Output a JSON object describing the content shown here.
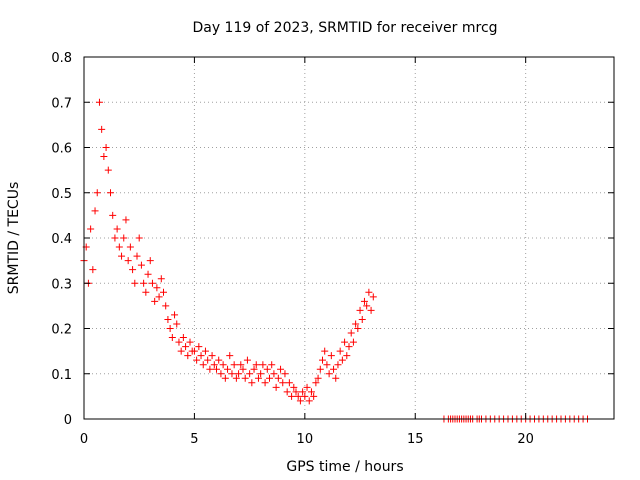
{
  "chart_data": {
    "type": "scatter",
    "title": "Day 119 of 2023, SRMTID for receiver mrcg",
    "xlabel": "GPS time / hours",
    "ylabel": "SRMTID / TECUs",
    "xlim": [
      0,
      24
    ],
    "ylim": [
      0,
      0.8
    ],
    "xticks": [
      0,
      5,
      10,
      15,
      20
    ],
    "xtick_labels": [
      "0",
      "5",
      "10",
      "15",
      "20"
    ],
    "yticks": [
      0,
      0.1,
      0.2,
      0.3,
      0.4,
      0.5,
      0.6,
      0.7,
      0.8
    ],
    "ytick_labels": [
      "0",
      "0.1",
      "0.2",
      "0.3",
      "0.4",
      "0.5",
      "0.6",
      "0.7",
      "0.8"
    ],
    "grid": true,
    "marker": "plus",
    "colors": {
      "series": "#ff0000",
      "grid": "#a0a0a0",
      "axis": "#000000"
    },
    "series": [
      {
        "name": "SRMTID",
        "x": [
          0.0,
          0.1,
          0.2,
          0.3,
          0.4,
          0.5,
          0.6,
          0.7,
          0.8,
          0.9,
          1.0,
          1.1,
          1.2,
          1.3,
          1.4,
          1.5,
          1.6,
          1.7,
          1.8,
          1.9,
          2.0,
          2.1,
          2.2,
          2.3,
          2.4,
          2.5,
          2.6,
          2.7,
          2.8,
          2.9,
          3.0,
          3.1,
          3.2,
          3.3,
          3.4,
          3.5,
          3.6,
          3.7,
          3.8,
          3.9,
          4.0,
          4.1,
          4.2,
          4.3,
          4.4,
          4.5,
          4.6,
          4.7,
          4.8,
          4.9,
          5.0,
          5.1,
          5.2,
          5.3,
          5.4,
          5.5,
          5.6,
          5.7,
          5.8,
          5.9,
          6.0,
          6.1,
          6.2,
          6.3,
          6.4,
          6.5,
          6.6,
          6.7,
          6.8,
          6.9,
          7.0,
          7.1,
          7.2,
          7.3,
          7.4,
          7.5,
          7.6,
          7.7,
          7.8,
          7.9,
          8.0,
          8.1,
          8.2,
          8.3,
          8.4,
          8.5,
          8.6,
          8.7,
          8.8,
          8.9,
          9.0,
          9.1,
          9.2,
          9.3,
          9.4,
          9.5,
          9.6,
          9.7,
          9.8,
          9.9,
          10.0,
          10.1,
          10.2,
          10.3,
          10.4,
          10.5,
          10.6,
          10.7,
          10.8,
          10.9,
          11.0,
          11.1,
          11.2,
          11.3,
          11.4,
          11.5,
          11.6,
          11.7,
          11.8,
          11.9,
          12.0,
          12.1,
          12.2,
          12.3,
          12.4,
          12.5,
          12.6,
          12.7,
          12.8,
          12.9,
          13.0,
          13.1,
          16.3,
          16.5,
          16.6,
          16.7,
          16.8,
          16.9,
          17.0,
          17.1,
          17.2,
          17.3,
          17.4,
          17.5,
          17.6,
          17.8,
          17.9,
          18.0,
          18.2,
          18.4,
          18.6,
          18.8,
          19.0,
          19.2,
          19.4,
          19.6,
          19.8,
          20.0,
          20.2,
          20.4,
          20.6,
          20.8,
          21.0,
          21.2,
          21.4,
          21.6,
          21.8,
          22.0,
          22.2,
          22.4,
          22.6,
          22.8
        ],
        "y": [
          0.35,
          0.38,
          0.3,
          0.42,
          0.33,
          0.46,
          0.5,
          0.7,
          0.64,
          0.58,
          0.6,
          0.55,
          0.5,
          0.45,
          0.4,
          0.42,
          0.38,
          0.36,
          0.4,
          0.44,
          0.35,
          0.38,
          0.33,
          0.3,
          0.36,
          0.4,
          0.34,
          0.3,
          0.28,
          0.32,
          0.35,
          0.3,
          0.26,
          0.29,
          0.27,
          0.31,
          0.28,
          0.25,
          0.22,
          0.2,
          0.18,
          0.23,
          0.21,
          0.17,
          0.15,
          0.18,
          0.16,
          0.14,
          0.17,
          0.15,
          0.15,
          0.13,
          0.16,
          0.14,
          0.12,
          0.15,
          0.13,
          0.11,
          0.14,
          0.12,
          0.11,
          0.13,
          0.1,
          0.12,
          0.09,
          0.11,
          0.14,
          0.1,
          0.12,
          0.09,
          0.1,
          0.12,
          0.11,
          0.09,
          0.13,
          0.1,
          0.08,
          0.11,
          0.12,
          0.09,
          0.1,
          0.12,
          0.08,
          0.11,
          0.09,
          0.12,
          0.1,
          0.07,
          0.09,
          0.11,
          0.08,
          0.1,
          0.06,
          0.08,
          0.05,
          0.07,
          0.06,
          0.05,
          0.04,
          0.06,
          0.05,
          0.07,
          0.04,
          0.06,
          0.05,
          0.08,
          0.09,
          0.11,
          0.13,
          0.15,
          0.12,
          0.1,
          0.14,
          0.11,
          0.09,
          0.12,
          0.15,
          0.13,
          0.17,
          0.14,
          0.16,
          0.19,
          0.17,
          0.21,
          0.2,
          0.24,
          0.22,
          0.26,
          0.25,
          0.28,
          0.24,
          0.27,
          0.0,
          0.0,
          0.0,
          0.0,
          0.0,
          0.0,
          0.0,
          0.0,
          0.0,
          0.0,
          0.0,
          0.0,
          0.0,
          0.0,
          0.0,
          0.0,
          0.0,
          0.0,
          0.0,
          0.0,
          0.0,
          0.0,
          0.0,
          0.0,
          0.0,
          0.0,
          0.0,
          0.0,
          0.0,
          0.0,
          0.0,
          0.0,
          0.0,
          0.0,
          0.0,
          0.0,
          0.0,
          0.0,
          0.0,
          0.0
        ]
      }
    ]
  }
}
